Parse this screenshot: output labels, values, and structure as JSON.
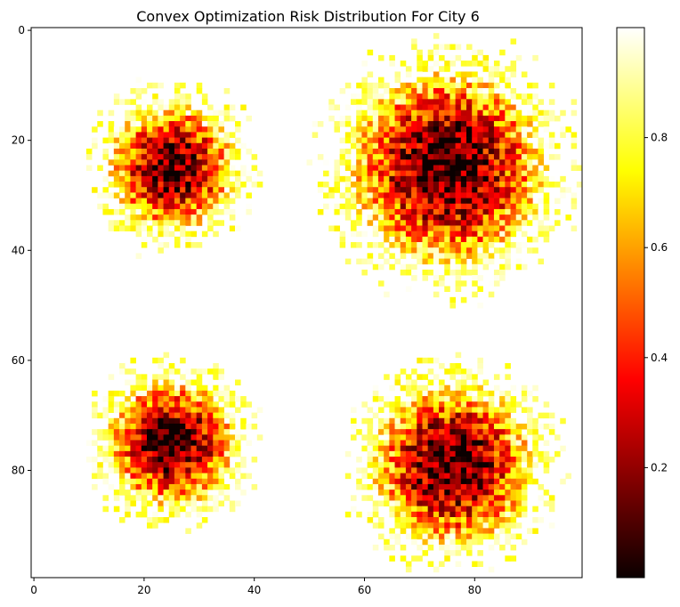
{
  "chart_data": {
    "type": "heatmap",
    "title": "Convex Optimization Risk Distribution For City 6",
    "colormap": "hot",
    "grid_size": [
      100,
      100
    ],
    "xlim": [
      -0.5,
      99.5
    ],
    "ylim": [
      99.5,
      -0.5
    ],
    "y_inverted": true,
    "x_ticks": [
      "0",
      "20",
      "40",
      "60",
      "80"
    ],
    "y_ticks": [
      "0",
      "20",
      "40",
      "60",
      "80"
    ],
    "colorbar_ticks": [
      "0.2",
      "0.4",
      "0.6",
      "0.8"
    ],
    "colorbar_range": [
      0.0,
      1.0
    ],
    "background_value": 1.0,
    "grid": false,
    "clusters": [
      {
        "name": "upper-left",
        "center_x": 25,
        "center_y": 25,
        "radius": 12,
        "min_value": 0.05
      },
      {
        "name": "upper-right",
        "center_x": 75,
        "center_y": 25,
        "radius": 18,
        "min_value": 0.02
      },
      {
        "name": "lower-left",
        "center_x": 25,
        "center_y": 75,
        "radius": 12,
        "min_value": 0.03
      },
      {
        "name": "lower-right",
        "center_x": 76,
        "center_y": 79,
        "radius": 15,
        "min_value": 0.02
      }
    ]
  }
}
